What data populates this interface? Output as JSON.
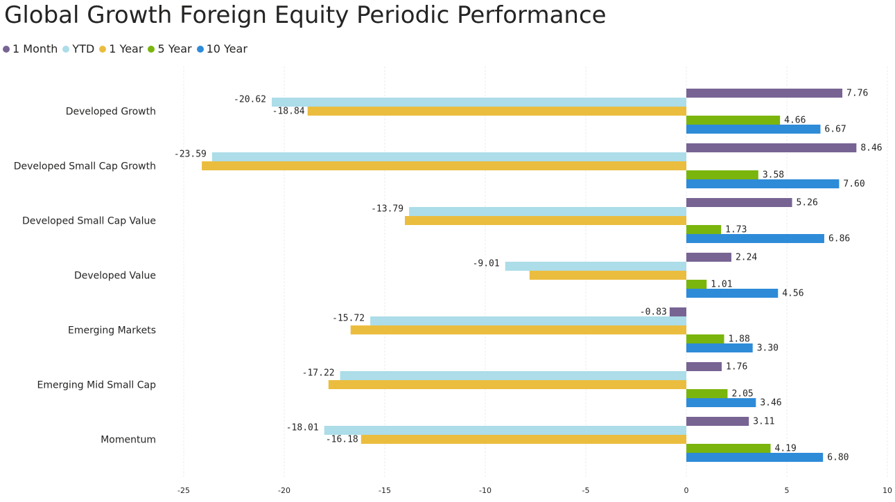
{
  "title": "Global Growth Foreign Equity Periodic Performance",
  "chart_data": {
    "type": "bar",
    "orientation": "horizontal",
    "title": "Global Growth Foreign Equity Periodic Performance",
    "categories": [
      "Developed Growth",
      "Developed Small Cap Growth",
      "Developed Small Cap Value",
      "Developed Value",
      "Emerging Markets",
      "Emerging Mid Small Cap",
      "Momentum"
    ],
    "series": [
      {
        "name": "1 Month",
        "color": "#776493",
        "values": [
          7.76,
          8.46,
          5.26,
          2.24,
          -0.83,
          1.76,
          3.11
        ],
        "labels": [
          "7.76",
          "8.46",
          "5.26",
          "2.24",
          "-0.83",
          "1.76",
          "3.11"
        ]
      },
      {
        "name": "YTD",
        "color": "#acdde8",
        "values": [
          -20.62,
          -23.59,
          -13.79,
          -9.01,
          -15.72,
          -17.22,
          -18.01
        ],
        "labels": [
          "-20.62",
          "-23.59",
          "-13.79",
          "-9.01",
          "-15.72",
          "-17.22",
          "-18.01"
        ]
      },
      {
        "name": "1 Year",
        "color": "#ebbd3f",
        "values": [
          -18.84,
          -24.1,
          -14.0,
          -7.8,
          -16.7,
          -17.8,
          -16.18
        ],
        "labels": [
          "-18.84",
          null,
          null,
          null,
          null,
          null,
          "-16.18"
        ]
      },
      {
        "name": "5 Year",
        "color": "#7ab50d",
        "values": [
          4.66,
          3.58,
          1.73,
          1.01,
          1.88,
          2.05,
          4.19
        ],
        "labels": [
          "4.66",
          "3.58",
          "1.73",
          "1.01",
          "1.88",
          "2.05",
          "4.19"
        ]
      },
      {
        "name": "10 Year",
        "color": "#2e8bd8",
        "values": [
          6.67,
          7.6,
          6.86,
          4.56,
          3.3,
          3.46,
          6.8
        ],
        "labels": [
          "6.67",
          "7.60",
          "6.86",
          "4.56",
          "3.30",
          "3.46",
          "6.80"
        ]
      }
    ],
    "xlim": [
      -25,
      10
    ],
    "xticks": [
      "-25",
      "-20",
      "-15",
      "-10",
      "-5",
      "0",
      "5",
      "10"
    ],
    "xtick_values": [
      -25,
      -20,
      -15,
      -10,
      -5,
      0,
      5,
      10
    ],
    "grid": true,
    "legend_position": "top-left"
  }
}
